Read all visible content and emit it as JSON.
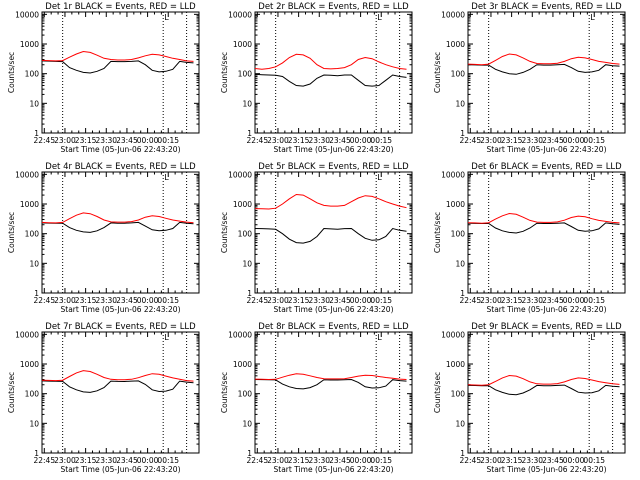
{
  "figure": {
    "title_pattern": "Det {det} BLACK = Events, RED = LLD"
  },
  "chart_data": [
    {
      "type": "line",
      "panel": "1r",
      "title": "Det 1r BLACK = Events, RED = LLD",
      "xlabel": "Start Time (05-Jun-06 22:43:20)",
      "ylabel": "Counts/sec",
      "xticks": [
        "22:45",
        "23:00",
        "23:15",
        "23:30",
        "23:45",
        "00:00",
        "00:15"
      ],
      "yticks": [
        "1",
        "10",
        "100",
        "1000",
        "10000"
      ],
      "yscale": "log",
      "ylim": [
        1,
        12000
      ],
      "x_minutes": [
        0,
        5,
        10,
        15,
        20,
        25,
        30,
        35,
        40,
        45,
        50,
        55,
        60,
        65,
        70,
        75,
        80,
        85,
        90,
        95,
        100,
        105,
        110
      ],
      "vlines_minutes": [
        15,
        88,
        105
      ],
      "marker_label": "L",
      "series": [
        {
          "name": "Events",
          "color": "#000000",
          "values": [
            270,
            265,
            260,
            255,
            160,
            130,
            110,
            105,
            120,
            150,
            260,
            255,
            255,
            260,
            270,
            200,
            130,
            115,
            120,
            140,
            260,
            240,
            230
          ]
        },
        {
          "name": "LLD",
          "color": "#ff0000",
          "values": [
            280,
            275,
            270,
            275,
            360,
            460,
            560,
            520,
            420,
            330,
            300,
            290,
            290,
            300,
            340,
            400,
            450,
            430,
            380,
            330,
            300,
            270,
            260
          ]
        }
      ]
    },
    {
      "type": "line",
      "panel": "2r",
      "title": "Det 2r BLACK = Events, RED = LLD",
      "xlabel": "Start Time (05-Jun-06 22:43:20)",
      "ylabel": "Counts/sec",
      "xticks": [
        "22:45",
        "23:00",
        "23:15",
        "23:30",
        "23:45",
        "00:00",
        "00:15"
      ],
      "yticks": [
        "1",
        "10",
        "100",
        "1000",
        "10000"
      ],
      "yscale": "log",
      "ylim": [
        1,
        12000
      ],
      "x_minutes": [
        0,
        5,
        10,
        15,
        20,
        25,
        30,
        35,
        40,
        45,
        50,
        55,
        60,
        65,
        70,
        75,
        80,
        85,
        90,
        95,
        100,
        105,
        110
      ],
      "vlines_minutes": [
        15,
        88,
        105
      ],
      "marker_label": "L",
      "series": [
        {
          "name": "Events",
          "color": "#000000",
          "values": [
            95,
            92,
            90,
            88,
            80,
            55,
            40,
            38,
            45,
            70,
            90,
            88,
            85,
            90,
            90,
            60,
            40,
            38,
            40,
            60,
            90,
            80,
            75
          ]
        },
        {
          "name": "LLD",
          "color": "#ff0000",
          "values": [
            150,
            140,
            150,
            170,
            230,
            350,
            450,
            430,
            330,
            200,
            150,
            145,
            150,
            160,
            200,
            300,
            350,
            320,
            250,
            200,
            170,
            150,
            140
          ]
        }
      ]
    },
    {
      "type": "line",
      "panel": "3r",
      "title": "Det 3r BLACK = Events, RED = LLD",
      "xlabel": "Start Time (05-Jun-06 22:43:20)",
      "ylabel": "Counts/sec",
      "xticks": [
        "22:45",
        "23:00",
        "23:15",
        "23:30",
        "23:45",
        "00:00",
        "00:15"
      ],
      "yticks": [
        "1",
        "10",
        "100",
        "1000",
        "10000"
      ],
      "yscale": "log",
      "ylim": [
        1,
        12000
      ],
      "x_minutes": [
        0,
        5,
        10,
        15,
        20,
        25,
        30,
        35,
        40,
        45,
        50,
        55,
        60,
        65,
        70,
        75,
        80,
        85,
        90,
        95,
        100,
        105,
        110
      ],
      "vlines_minutes": [
        15,
        88,
        105
      ],
      "marker_label": "L",
      "series": [
        {
          "name": "Events",
          "color": "#000000",
          "values": [
            200,
            198,
            195,
            195,
            140,
            115,
            100,
            95,
            110,
            140,
            200,
            195,
            195,
            200,
            205,
            160,
            120,
            110,
            115,
            130,
            200,
            185,
            180
          ]
        },
        {
          "name": "LLD",
          "color": "#ff0000",
          "values": [
            210,
            205,
            200,
            210,
            280,
            380,
            460,
            430,
            340,
            260,
            220,
            215,
            215,
            225,
            260,
            320,
            360,
            340,
            300,
            260,
            240,
            220,
            210
          ]
        }
      ]
    },
    {
      "type": "line",
      "panel": "4r",
      "title": "Det 4r BLACK = Events, RED = LLD",
      "xlabel": "Start Time (05-Jun-06 22:43:20)",
      "ylabel": "Counts/sec",
      "xticks": [
        "22:45",
        "23:00",
        "23:15",
        "23:30",
        "23:45",
        "00:00",
        "00:15"
      ],
      "yticks": [
        "1",
        "10",
        "100",
        "1000",
        "10000"
      ],
      "yscale": "log",
      "ylim": [
        1,
        12000
      ],
      "x_minutes": [
        0,
        5,
        10,
        15,
        20,
        25,
        30,
        35,
        40,
        45,
        50,
        55,
        60,
        65,
        70,
        75,
        80,
        85,
        90,
        95,
        100,
        105,
        110
      ],
      "vlines_minutes": [
        15,
        88,
        105
      ],
      "marker_label": "L",
      "series": [
        {
          "name": "Events",
          "color": "#000000",
          "values": [
            230,
            228,
            225,
            225,
            160,
            130,
            115,
            110,
            125,
            160,
            230,
            225,
            225,
            230,
            240,
            180,
            135,
            125,
            130,
            150,
            240,
            225,
            215
          ]
        },
        {
          "name": "LLD",
          "color": "#ff0000",
          "values": [
            240,
            235,
            230,
            240,
            320,
            420,
            500,
            470,
            380,
            290,
            250,
            245,
            245,
            255,
            290,
            360,
            400,
            380,
            330,
            290,
            265,
            245,
            235
          ]
        }
      ]
    },
    {
      "type": "line",
      "panel": "5r",
      "title": "Det 5r BLACK = Events, RED = LLD",
      "xlabel": "Start Time (05-Jun-06 22:43:20)",
      "ylabel": "Counts/sec",
      "xticks": [
        "22:45",
        "23:00",
        "23:15",
        "23:30",
        "23:45",
        "00:00",
        "00:15"
      ],
      "yticks": [
        "1",
        "10",
        "100",
        "1000",
        "10000"
      ],
      "yscale": "log",
      "ylim": [
        1,
        12000
      ],
      "x_minutes": [
        0,
        5,
        10,
        15,
        20,
        25,
        30,
        35,
        40,
        45,
        50,
        55,
        60,
        65,
        70,
        75,
        80,
        85,
        90,
        95,
        100,
        105,
        110
      ],
      "vlines_minutes": [
        15,
        88,
        105
      ],
      "marker_label": "L",
      "series": [
        {
          "name": "Events",
          "color": "#000000",
          "values": [
            150,
            148,
            145,
            140,
            100,
            65,
            50,
            48,
            55,
            80,
            150,
            145,
            140,
            148,
            150,
            100,
            70,
            60,
            62,
            80,
            150,
            130,
            120
          ]
        },
        {
          "name": "LLD",
          "color": "#ff0000",
          "values": [
            700,
            690,
            680,
            720,
            1000,
            1500,
            2100,
            2000,
            1500,
            1100,
            900,
            850,
            850,
            900,
            1200,
            1600,
            1900,
            1800,
            1500,
            1200,
            1000,
            850,
            750
          ]
        }
      ]
    },
    {
      "type": "line",
      "panel": "6r",
      "title": "Det 6r BLACK = Events, RED = LLD",
      "xlabel": "Start Time (05-Jun-06 22:43:20)",
      "ylabel": "Counts/sec",
      "xticks": [
        "22:45",
        "23:00",
        "23:15",
        "23:30",
        "23:45",
        "00:00",
        "00:15"
      ],
      "yticks": [
        "1",
        "10",
        "100",
        "1000",
        "10000"
      ],
      "yscale": "log",
      "ylim": [
        1,
        12000
      ],
      "x_minutes": [
        0,
        5,
        10,
        15,
        20,
        25,
        30,
        35,
        40,
        45,
        50,
        55,
        60,
        65,
        70,
        75,
        80,
        85,
        90,
        95,
        100,
        105,
        110
      ],
      "vlines_minutes": [
        15,
        88,
        105
      ],
      "marker_label": "L",
      "series": [
        {
          "name": "Events",
          "color": "#000000",
          "values": [
            225,
            222,
            220,
            220,
            155,
            125,
            110,
            105,
            120,
            155,
            225,
            220,
            220,
            225,
            230,
            175,
            130,
            120,
            125,
            145,
            230,
            215,
            205
          ]
        },
        {
          "name": "LLD",
          "color": "#ff0000",
          "values": [
            235,
            230,
            225,
            235,
            310,
            400,
            480,
            450,
            360,
            280,
            245,
            240,
            240,
            250,
            285,
            350,
            390,
            370,
            320,
            280,
            260,
            240,
            230
          ]
        }
      ]
    },
    {
      "type": "line",
      "panel": "7r",
      "title": "Det 7r BLACK = Events, RED = LLD",
      "xlabel": "Start Time (05-Jun-06 22:43:20)",
      "ylabel": "Counts/sec",
      "xticks": [
        "22:45",
        "23:00",
        "23:15",
        "23:30",
        "23:45",
        "00:00",
        "00:15"
      ],
      "yticks": [
        "1",
        "10",
        "100",
        "1000",
        "10000"
      ],
      "yscale": "log",
      "ylim": [
        1,
        12000
      ],
      "x_minutes": [
        0,
        5,
        10,
        15,
        20,
        25,
        30,
        35,
        40,
        45,
        50,
        55,
        60,
        65,
        70,
        75,
        80,
        85,
        90,
        95,
        100,
        105,
        110
      ],
      "vlines_minutes": [
        15,
        88,
        105
      ],
      "marker_label": "L",
      "series": [
        {
          "name": "Events",
          "color": "#000000",
          "values": [
            270,
            265,
            262,
            260,
            170,
            135,
            115,
            110,
            125,
            160,
            265,
            260,
            258,
            265,
            270,
            205,
            135,
            118,
            122,
            142,
            265,
            245,
            235
          ]
        },
        {
          "name": "LLD",
          "color": "#ff0000",
          "values": [
            285,
            280,
            275,
            285,
            380,
            500,
            600,
            560,
            450,
            350,
            305,
            295,
            295,
            305,
            345,
            410,
            470,
            450,
            390,
            340,
            305,
            275,
            265
          ]
        }
      ]
    },
    {
      "type": "line",
      "panel": "8r",
      "title": "Det 8r BLACK = Events, RED = LLD",
      "xlabel": "Start Time (05-Jun-06 22:43:20)",
      "ylabel": "Counts/sec",
      "xticks": [
        "22:45",
        "23:00",
        "23:15",
        "23:30",
        "23:45",
        "00:00",
        "00:15"
      ],
      "yticks": [
        "1",
        "10",
        "100",
        "1000",
        "10000"
      ],
      "yscale": "log",
      "ylim": [
        1,
        12000
      ],
      "x_minutes": [
        0,
        5,
        10,
        15,
        20,
        25,
        30,
        35,
        40,
        45,
        50,
        55,
        60,
        65,
        70,
        75,
        80,
        85,
        90,
        95,
        100,
        105,
        110
      ],
      "vlines_minutes": [
        15,
        88,
        105
      ],
      "marker_label": "L",
      "series": [
        {
          "name": "Events",
          "color": "#000000",
          "values": [
            300,
            298,
            295,
            292,
            210,
            170,
            150,
            145,
            160,
            200,
            295,
            290,
            290,
            295,
            300,
            240,
            170,
            155,
            158,
            180,
            295,
            275,
            265
          ]
        },
        {
          "name": "LLD",
          "color": "#ff0000",
          "values": [
            310,
            305,
            300,
            305,
            360,
            420,
            470,
            450,
            400,
            350,
            320,
            315,
            315,
            320,
            350,
            390,
            420,
            410,
            380,
            350,
            330,
            310,
            300
          ]
        }
      ]
    },
    {
      "type": "line",
      "panel": "9r",
      "title": "Det 9r BLACK = Events, RED = LLD",
      "xlabel": "Start Time (05-Jun-06 22:43:20)",
      "ylabel": "Counts/sec",
      "xticks": [
        "22:45",
        "23:00",
        "23:15",
        "23:30",
        "23:45",
        "00:00",
        "00:15"
      ],
      "yticks": [
        "1",
        "10",
        "100",
        "1000",
        "10000"
      ],
      "yscale": "log",
      "ylim": [
        1,
        12000
      ],
      "x_minutes": [
        0,
        5,
        10,
        15,
        20,
        25,
        30,
        35,
        40,
        45,
        50,
        55,
        60,
        65,
        70,
        75,
        80,
        85,
        90,
        95,
        100,
        105,
        110
      ],
      "vlines_minutes": [
        15,
        88,
        105
      ],
      "marker_label": "L",
      "series": [
        {
          "name": "Events",
          "color": "#000000",
          "values": [
            190,
            188,
            185,
            185,
            135,
            110,
            95,
            92,
            105,
            135,
            190,
            185,
            185,
            190,
            195,
            150,
            112,
            105,
            108,
            125,
            190,
            178,
            170
          ]
        },
        {
          "name": "LLD",
          "color": "#ff0000",
          "values": [
            200,
            196,
            192,
            200,
            260,
            340,
            410,
            390,
            320,
            250,
            215,
            210,
            210,
            218,
            250,
            300,
            340,
            325,
            290,
            255,
            235,
            215,
            205
          ]
        }
      ]
    }
  ]
}
